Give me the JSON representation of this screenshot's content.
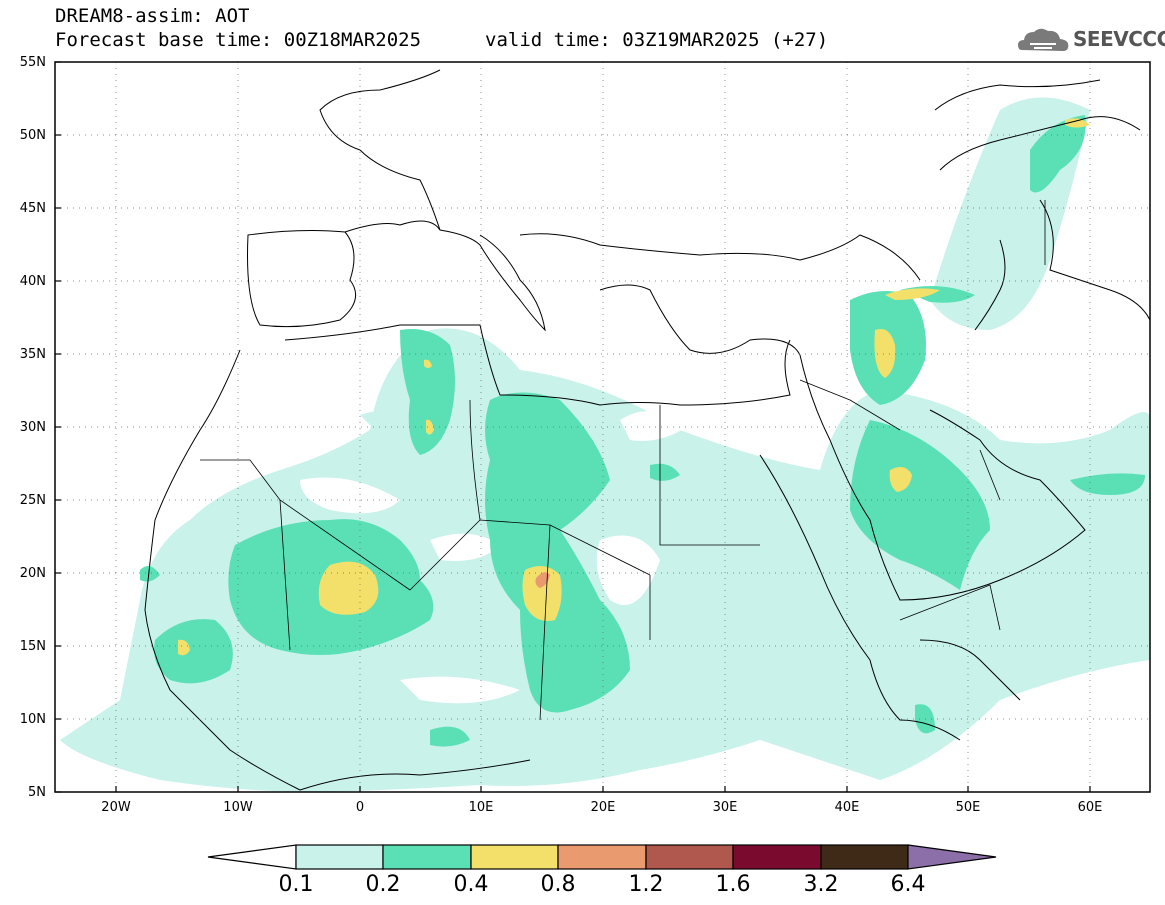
{
  "header": {
    "product": "DREAM8-assim: AOT",
    "base_time": "Forecast base time: 00Z18MAR2025",
    "valid_time": "valid time: 03Z19MAR2025 (+27)"
  },
  "logo": {
    "text": "SEEVCCC",
    "icon": "cloud-icon"
  },
  "map": {
    "lon_range": [
      -25,
      65
    ],
    "lat_range": [
      5,
      55
    ],
    "lat_labels": [
      "55N",
      "50N",
      "45N",
      "40N",
      "35N",
      "30N",
      "25N",
      "20N",
      "15N",
      "10N",
      "5N"
    ],
    "lon_labels": [
      "20W",
      "10W",
      "0",
      "10E",
      "20E",
      "30E",
      "40E",
      "50E",
      "60E"
    ],
    "grid": "dotted"
  },
  "colorbar": {
    "labels": [
      "0.1",
      "0.2",
      "0.4",
      "0.8",
      "1.2",
      "1.6",
      "3.2",
      "6.4"
    ],
    "colors": [
      "#ffffff",
      "#c8f2ea",
      "#5be0b6",
      "#f2e06a",
      "#e99a6f",
      "#b0584e",
      "#7a0a2e",
      "#3f2a18",
      "#8c6ea8"
    ]
  }
}
